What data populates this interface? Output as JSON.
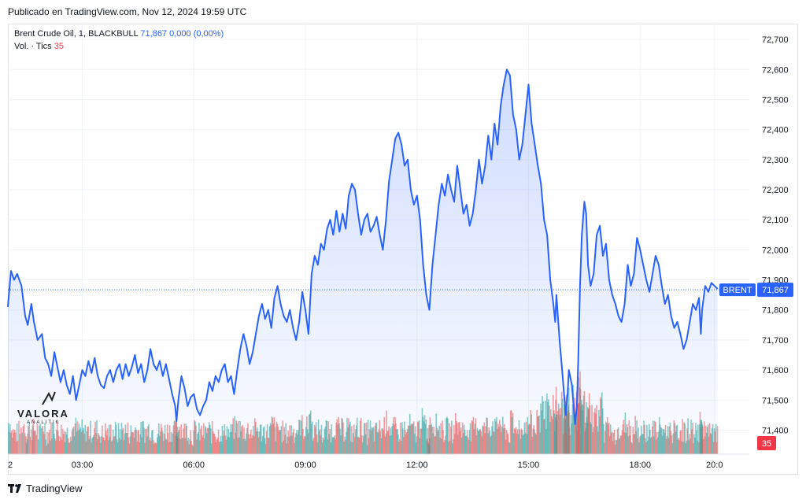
{
  "header": {
    "published": "Publicado en TradingView.com, Nov 12, 2024 19:59 UTC"
  },
  "legend": {
    "instrument": "Brent Crude Oil, 1, BLACKBULL",
    "price": "71,867",
    "change": "0,000 (0,00%)",
    "volume_label": "Vol. · Tics",
    "volume_value": "35"
  },
  "footer": {
    "brand": "TradingView"
  },
  "watermark": {
    "title": "VALORA",
    "subtitle": "ANALITIK"
  },
  "colors": {
    "line": "#2962ff",
    "volume_up": "#26a69a",
    "volume_down": "#ef5350",
    "grid": "#f0f3fa"
  },
  "chart_data": {
    "type": "line",
    "symbol_badge": "BRENT",
    "last_price": 71.867,
    "last_price_label": "71,867",
    "last_volume_label": "35",
    "ylim": [
      71.32,
      72.75
    ],
    "y_ticks": [
      71.4,
      71.5,
      71.6,
      71.7,
      71.8,
      71.9,
      72.0,
      72.1,
      72.2,
      72.3,
      72.4,
      72.5,
      72.6,
      72.7
    ],
    "y_tick_labels": [
      "71,400",
      "71,500",
      "71,600",
      "71,700",
      "71,800",
      "71,900",
      "72,000",
      "72,100",
      "72,200",
      "72,300",
      "72,400",
      "72,500",
      "72,600",
      "72,700"
    ],
    "xlim": [
      0,
      1200
    ],
    "x_ticks": [
      0,
      180,
      360,
      540,
      720,
      900,
      1080
    ],
    "x_tick_labels": [
      "2",
      "03:00",
      "06:00",
      "09:00",
      "12:00",
      "15:00",
      "18:00",
      "20:0"
    ],
    "x_tick_positions": [
      0,
      120,
      300,
      480,
      660,
      840,
      1020,
      1140
    ],
    "grid": true,
    "series": [
      {
        "values": [
          [
            0,
            71.81
          ],
          [
            5,
            71.93
          ],
          [
            10,
            71.9
          ],
          [
            15,
            71.92
          ],
          [
            22,
            71.88
          ],
          [
            28,
            71.78
          ],
          [
            32,
            71.75
          ],
          [
            38,
            71.82
          ],
          [
            42,
            71.76
          ],
          [
            48,
            71.7
          ],
          [
            55,
            71.72
          ],
          [
            60,
            71.64
          ],
          [
            65,
            71.62
          ],
          [
            70,
            71.58
          ],
          [
            75,
            71.66
          ],
          [
            80,
            71.61
          ],
          [
            85,
            71.56
          ],
          [
            90,
            71.6
          ],
          [
            95,
            71.55
          ],
          [
            100,
            71.52
          ],
          [
            105,
            71.58
          ],
          [
            110,
            71.5
          ],
          [
            115,
            71.55
          ],
          [
            120,
            71.6
          ],
          [
            125,
            71.58
          ],
          [
            130,
            71.63
          ],
          [
            135,
            71.59
          ],
          [
            140,
            71.64
          ],
          [
            145,
            71.58
          ],
          [
            150,
            71.55
          ],
          [
            155,
            71.54
          ],
          [
            160,
            71.58
          ],
          [
            165,
            71.6
          ],
          [
            170,
            71.56
          ],
          [
            175,
            71.6
          ],
          [
            180,
            71.62
          ],
          [
            185,
            71.57
          ],
          [
            190,
            71.62
          ],
          [
            195,
            71.58
          ],
          [
            200,
            71.61
          ],
          [
            205,
            71.65
          ],
          [
            210,
            71.59
          ],
          [
            215,
            71.62
          ],
          [
            220,
            71.56
          ],
          [
            225,
            71.6
          ],
          [
            230,
            71.67
          ],
          [
            235,
            71.62
          ],
          [
            240,
            71.6
          ],
          [
            245,
            71.63
          ],
          [
            250,
            71.58
          ],
          [
            255,
            71.62
          ],
          [
            260,
            71.57
          ],
          [
            265,
            71.52
          ],
          [
            270,
            71.48
          ],
          [
            272,
            71.43
          ],
          [
            275,
            71.5
          ],
          [
            280,
            71.58
          ],
          [
            285,
            71.54
          ],
          [
            290,
            71.48
          ],
          [
            295,
            71.51
          ],
          [
            300,
            71.52
          ],
          [
            305,
            71.47
          ],
          [
            310,
            71.45
          ],
          [
            315,
            71.48
          ],
          [
            320,
            71.5
          ],
          [
            325,
            71.56
          ],
          [
            330,
            71.53
          ],
          [
            335,
            71.58
          ],
          [
            340,
            71.56
          ],
          [
            345,
            71.6
          ],
          [
            350,
            71.62
          ],
          [
            355,
            71.56
          ],
          [
            360,
            71.58
          ],
          [
            365,
            71.52
          ],
          [
            370,
            71.6
          ],
          [
            375,
            71.67
          ],
          [
            380,
            71.72
          ],
          [
            385,
            71.68
          ],
          [
            390,
            71.62
          ],
          [
            395,
            71.66
          ],
          [
            400,
            71.72
          ],
          [
            405,
            71.78
          ],
          [
            410,
            71.82
          ],
          [
            415,
            71.77
          ],
          [
            420,
            71.8
          ],
          [
            425,
            71.74
          ],
          [
            430,
            71.84
          ],
          [
            435,
            71.88
          ],
          [
            440,
            71.82
          ],
          [
            445,
            71.78
          ],
          [
            450,
            71.76
          ],
          [
            455,
            71.8
          ],
          [
            460,
            71.74
          ],
          [
            465,
            71.7
          ],
          [
            470,
            71.76
          ],
          [
            475,
            71.86
          ],
          [
            480,
            71.8
          ],
          [
            485,
            71.72
          ],
          [
            490,
            71.92
          ],
          [
            495,
            71.98
          ],
          [
            500,
            71.95
          ],
          [
            505,
            72.02
          ],
          [
            510,
            72.0
          ],
          [
            515,
            72.07
          ],
          [
            520,
            72.1
          ],
          [
            525,
            72.05
          ],
          [
            530,
            72.13
          ],
          [
            535,
            72.06
          ],
          [
            540,
            72.12
          ],
          [
            545,
            72.07
          ],
          [
            550,
            72.18
          ],
          [
            555,
            72.22
          ],
          [
            560,
            72.2
          ],
          [
            565,
            72.12
          ],
          [
            570,
            72.05
          ],
          [
            575,
            72.1
          ],
          [
            580,
            72.12
          ],
          [
            585,
            72.06
          ],
          [
            590,
            72.08
          ],
          [
            595,
            72.11
          ],
          [
            600,
            72.05
          ],
          [
            605,
            72.0
          ],
          [
            610,
            72.1
          ],
          [
            615,
            72.23
          ],
          [
            620,
            72.3
          ],
          [
            625,
            72.37
          ],
          [
            630,
            72.39
          ],
          [
            635,
            72.35
          ],
          [
            640,
            72.28
          ],
          [
            645,
            72.3
          ],
          [
            650,
            72.2
          ],
          [
            655,
            72.15
          ],
          [
            660,
            72.18
          ],
          [
            665,
            72.1
          ],
          [
            670,
            71.95
          ],
          [
            675,
            71.85
          ],
          [
            678,
            71.82
          ],
          [
            680,
            71.8
          ],
          [
            685,
            71.95
          ],
          [
            690,
            72.05
          ],
          [
            695,
            72.15
          ],
          [
            700,
            72.22
          ],
          [
            705,
            72.18
          ],
          [
            710,
            72.25
          ],
          [
            715,
            72.2
          ],
          [
            720,
            72.16
          ],
          [
            725,
            72.28
          ],
          [
            730,
            72.2
          ],
          [
            735,
            72.12
          ],
          [
            740,
            72.15
          ],
          [
            745,
            72.08
          ],
          [
            750,
            72.12
          ],
          [
            755,
            72.2
          ],
          [
            760,
            72.3
          ],
          [
            765,
            72.22
          ],
          [
            770,
            72.28
          ],
          [
            775,
            72.38
          ],
          [
            780,
            72.3
          ],
          [
            785,
            72.42
          ],
          [
            790,
            72.35
          ],
          [
            795,
            72.48
          ],
          [
            800,
            72.55
          ],
          [
            805,
            72.6
          ],
          [
            810,
            72.58
          ],
          [
            815,
            72.45
          ],
          [
            820,
            72.4
          ],
          [
            825,
            72.3
          ],
          [
            830,
            72.35
          ],
          [
            835,
            72.45
          ],
          [
            840,
            72.55
          ],
          [
            845,
            72.42
          ],
          [
            850,
            72.35
          ],
          [
            855,
            72.28
          ],
          [
            860,
            72.22
          ],
          [
            865,
            72.1
          ],
          [
            870,
            72.05
          ],
          [
            875,
            71.9
          ],
          [
            880,
            71.82
          ],
          [
            883,
            71.76
          ],
          [
            885,
            71.85
          ],
          [
            890,
            71.7
          ],
          [
            895,
            71.58
          ],
          [
            898,
            71.5
          ],
          [
            900,
            71.45
          ],
          [
            903,
            71.52
          ],
          [
            905,
            71.6
          ],
          [
            910,
            71.55
          ],
          [
            915,
            71.42
          ],
          [
            918,
            71.48
          ],
          [
            920,
            71.62
          ],
          [
            923,
            71.88
          ],
          [
            926,
            72.05
          ],
          [
            930,
            72.16
          ],
          [
            933,
            72.12
          ],
          [
            936,
            71.95
          ],
          [
            940,
            71.88
          ],
          [
            945,
            71.92
          ],
          [
            950,
            72.05
          ],
          [
            955,
            72.08
          ],
          [
            960,
            71.98
          ],
          [
            965,
            72.02
          ],
          [
            970,
            71.9
          ],
          [
            975,
            71.85
          ],
          [
            980,
            71.82
          ],
          [
            985,
            71.78
          ],
          [
            990,
            71.76
          ],
          [
            995,
            71.82
          ],
          [
            1000,
            71.95
          ],
          [
            1005,
            71.88
          ],
          [
            1010,
            71.92
          ],
          [
            1015,
            72.04
          ],
          [
            1020,
            72.0
          ],
          [
            1025,
            71.95
          ],
          [
            1030,
            71.9
          ],
          [
            1035,
            71.86
          ],
          [
            1040,
            71.92
          ],
          [
            1045,
            71.98
          ],
          [
            1050,
            71.95
          ],
          [
            1055,
            71.88
          ],
          [
            1060,
            71.82
          ],
          [
            1065,
            71.85
          ],
          [
            1070,
            71.78
          ],
          [
            1075,
            71.74
          ],
          [
            1080,
            71.76
          ],
          [
            1085,
            71.72
          ],
          [
            1090,
            71.67
          ],
          [
            1095,
            71.7
          ],
          [
            1100,
            71.76
          ],
          [
            1105,
            71.82
          ],
          [
            1110,
            71.8
          ],
          [
            1115,
            71.84
          ],
          [
            1118,
            71.72
          ],
          [
            1120,
            71.8
          ],
          [
            1125,
            71.88
          ],
          [
            1130,
            71.86
          ],
          [
            1135,
            71.89
          ],
          [
            1140,
            71.88
          ],
          [
            1145,
            71.87
          ]
        ]
      }
    ]
  }
}
